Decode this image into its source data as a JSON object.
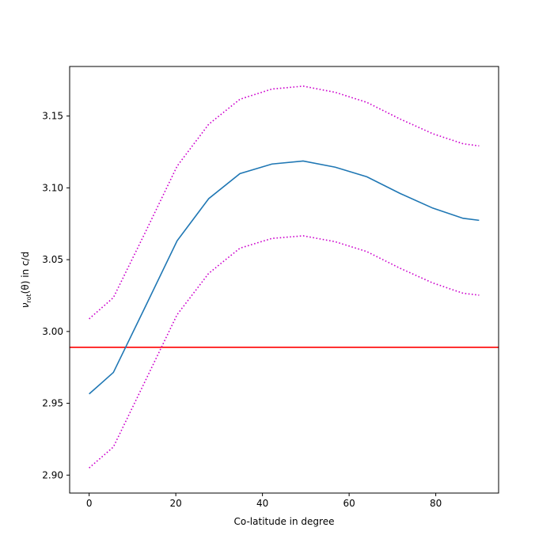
{
  "chart_data": {
    "type": "line",
    "title": "",
    "xlabel": "Co-latitude in degree",
    "ylabel_main": "ν",
    "ylabel_sub": "rot",
    "ylabel_rest": "(θ) in c/d",
    "xlim": [
      -4.5,
      94.5
    ],
    "ylim": [
      2.8875,
      3.1845
    ],
    "xticks": [
      0,
      20,
      40,
      60,
      80
    ],
    "yticks": [
      2.9,
      2.95,
      3.0,
      3.05,
      3.1,
      3.15
    ],
    "xtick_labels": [
      "0",
      "20",
      "40",
      "60",
      "80"
    ],
    "ytick_labels": [
      "2.90",
      "2.95",
      "3.00",
      "3.05",
      "3.10",
      "3.15"
    ],
    "grid": false,
    "x": [
      0,
      5.6,
      13.1,
      20.3,
      27.6,
      34.8,
      42.2,
      49.4,
      56.8,
      64.1,
      71.7,
      79.3,
      86.3,
      90
    ],
    "series": [
      {
        "style": "solid",
        "color": "#1f77b4",
        "values": [
          2.9565,
          2.9715,
          3.0181,
          3.0631,
          3.0925,
          3.1099,
          3.1166,
          3.1187,
          3.1144,
          3.1077,
          3.0962,
          3.0859,
          3.0788,
          3.0774
        ]
      },
      {
        "style": "dotted",
        "color": "#cc00cc",
        "values": [
          3.0088,
          3.0236,
          3.0699,
          3.1151,
          3.1443,
          3.1617,
          3.1688,
          3.1708,
          3.1665,
          3.1595,
          3.148,
          3.1377,
          3.1307,
          3.1292
        ]
      },
      {
        "style": "dotted",
        "color": "#cc00cc",
        "values": [
          2.905,
          2.9196,
          2.9665,
          3.0117,
          3.0405,
          3.058,
          3.0648,
          3.0666,
          3.0625,
          3.0556,
          3.0441,
          3.0338,
          3.0266,
          3.0253
        ]
      }
    ],
    "hline": {
      "y": 2.989,
      "color": "#ff0000"
    }
  }
}
